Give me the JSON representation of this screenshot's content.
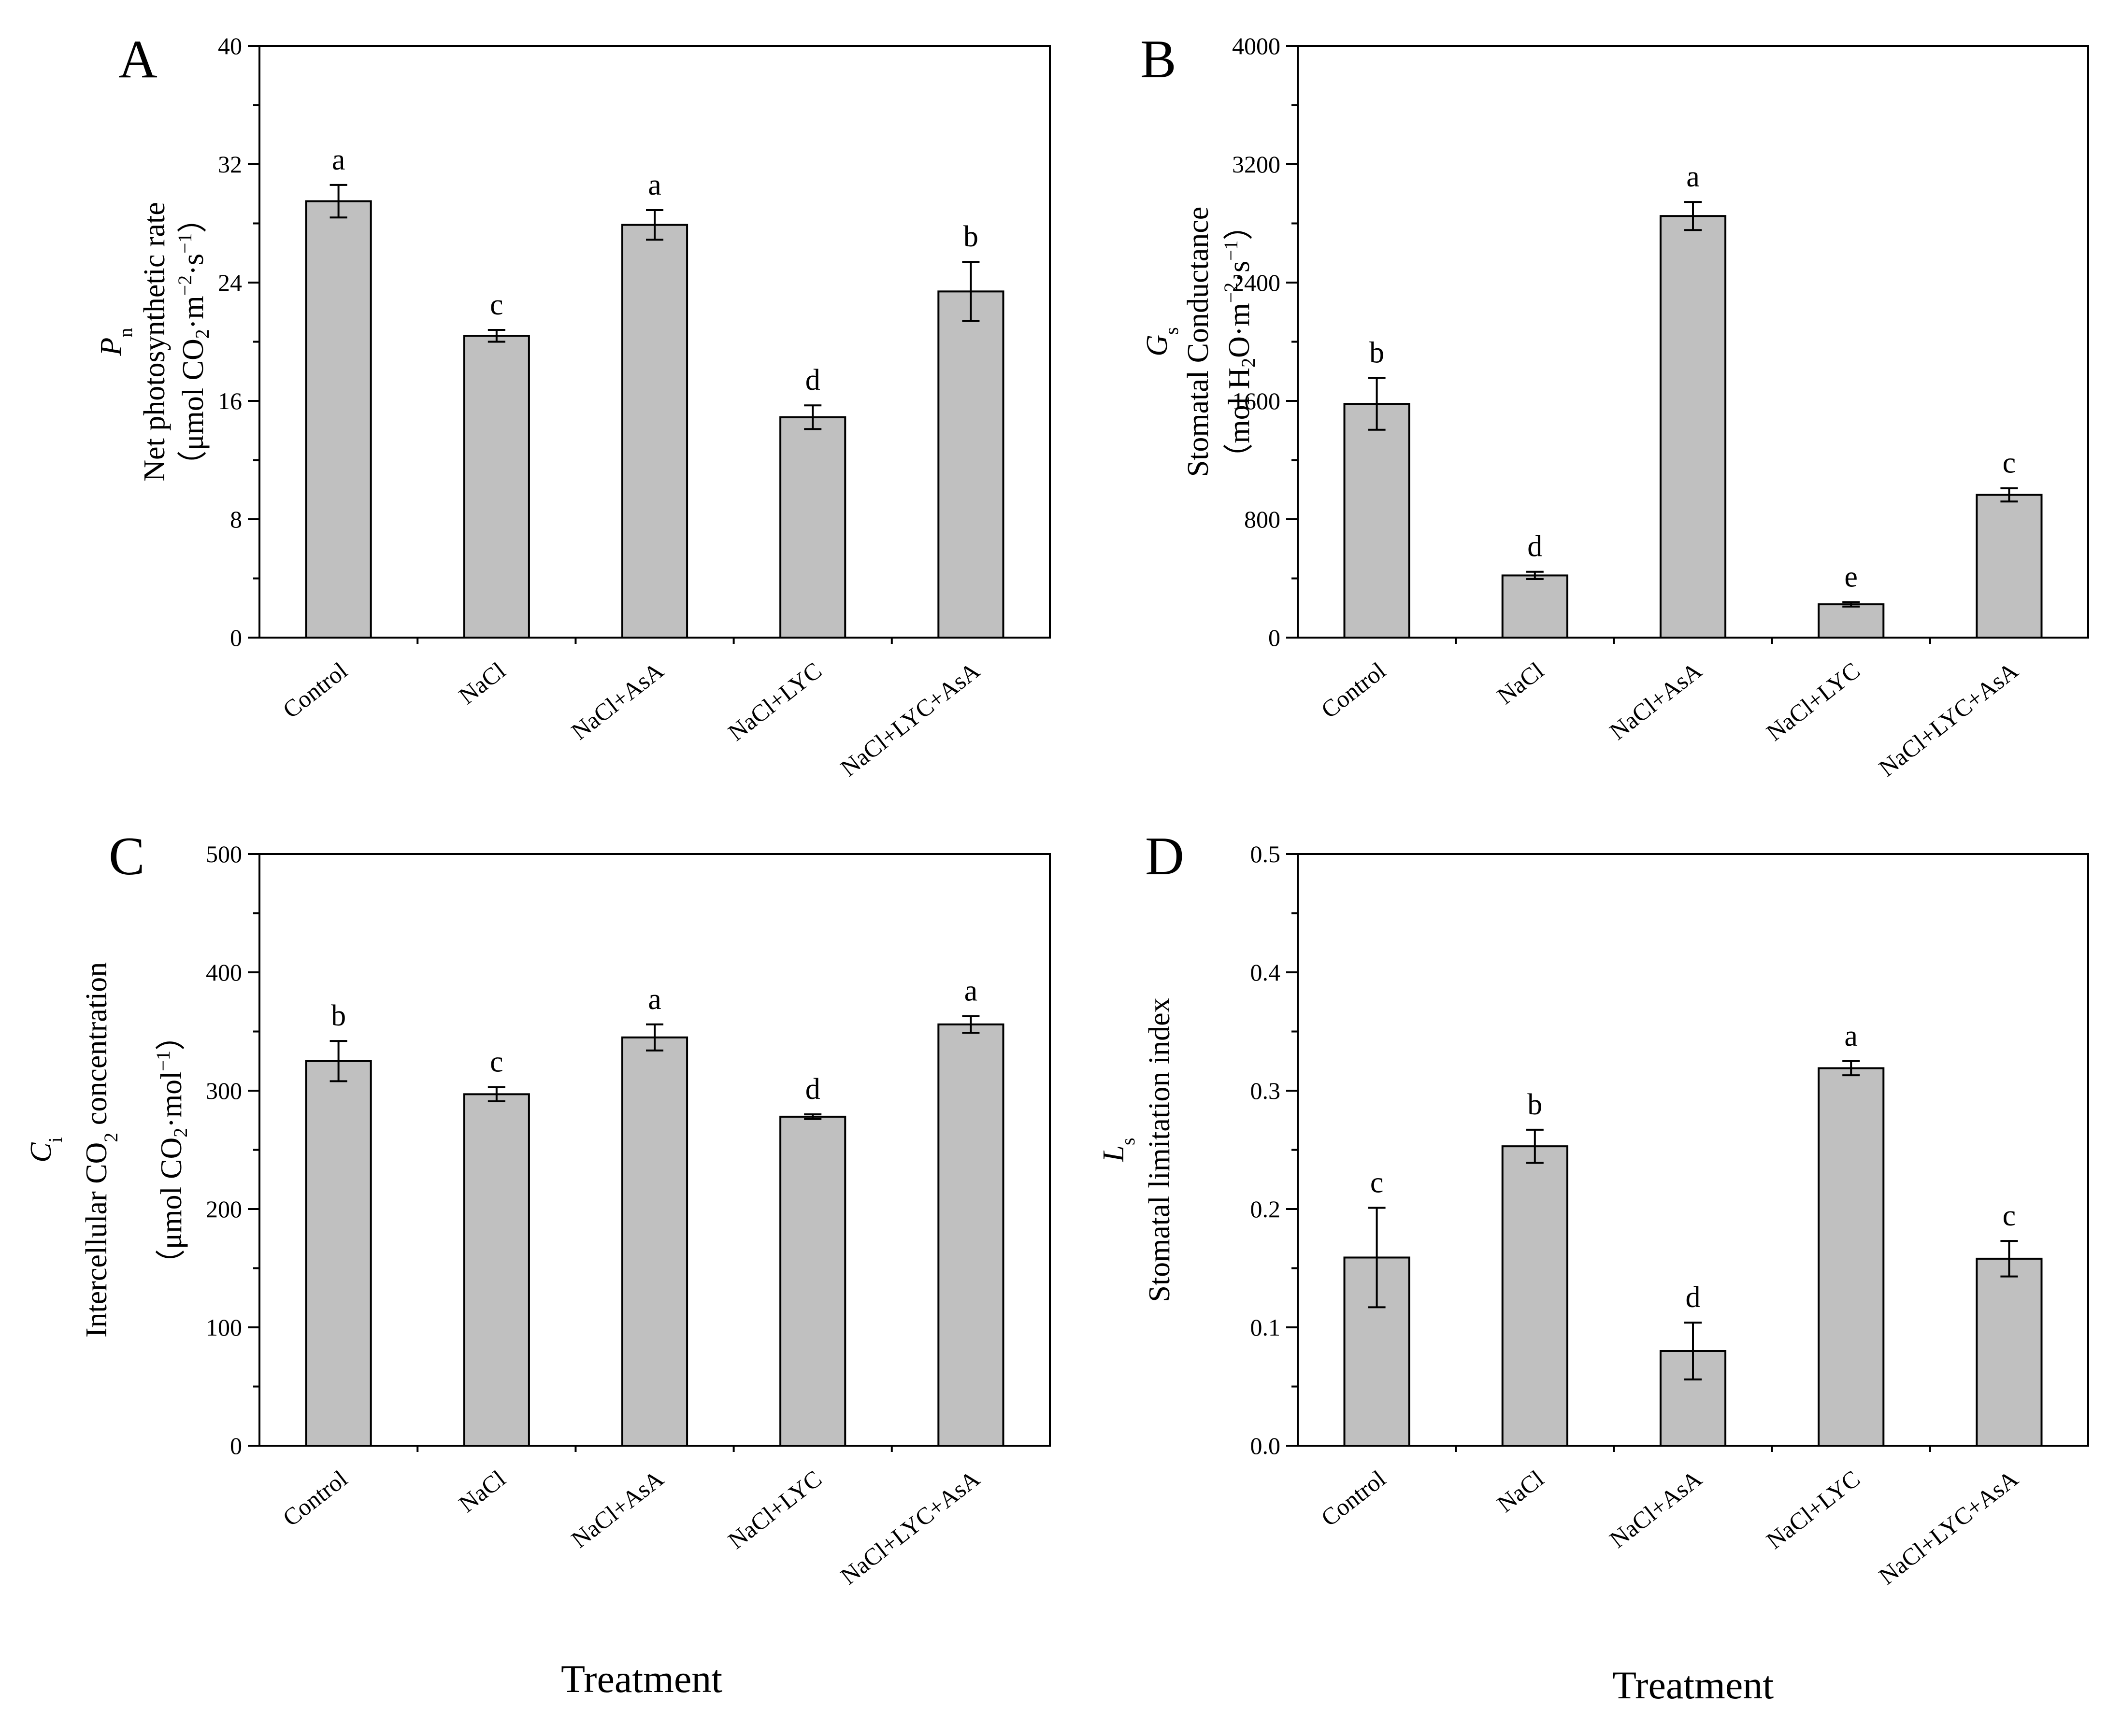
{
  "figure": {
    "x_axis_title": "Treatment"
  },
  "chart_data": [
    {
      "panel": "A",
      "type": "bar",
      "categories": [
        "Control",
        "NaCl",
        "NaCl+AsA",
        "NaCl+LYC",
        "NaCl+LYC+AsA"
      ],
      "values": [
        29.5,
        20.4,
        27.9,
        14.9,
        23.4
      ],
      "errors": [
        1.1,
        0.4,
        1.0,
        0.8,
        2.0
      ],
      "significance": [
        "a",
        "c",
        "a",
        "d",
        "b"
      ],
      "ylim": [
        0,
        40
      ],
      "yticks": [
        "0",
        "8",
        "16",
        "24",
        "32",
        "40"
      ],
      "ylabel": {
        "symbol": "P",
        "symbol_sub": "n",
        "name": "Net photosynthetic rate",
        "unit_open": "（μmol CO",
        "unit_sub": "2",
        "unit_mid": "·m",
        "unit_sup": "−2",
        "unit_mid2": "·s",
        "unit_sup2": "−1",
        "unit_close": "）"
      }
    },
    {
      "panel": "B",
      "type": "bar",
      "categories": [
        "Control",
        "NaCl",
        "NaCl+AsA",
        "NaCl+LYC",
        "NaCl+LYC+AsA"
      ],
      "values": [
        1580,
        420,
        2850,
        225,
        965
      ],
      "errors": [
        175,
        25,
        95,
        15,
        45
      ],
      "significance": [
        "b",
        "d",
        "a",
        "e",
        "c"
      ],
      "ylim": [
        0,
        4000
      ],
      "yticks": [
        "0",
        "800",
        "1600",
        "2400",
        "3200",
        "4000"
      ],
      "ylabel": {
        "symbol": "G",
        "symbol_sub": "s",
        "name": "Stomatal Conductance",
        "unit_open": "（mol H",
        "unit_sub": "2",
        "unit_mid": "O·m",
        "unit_sup": "−2",
        "unit_mid2": "·s",
        "unit_sup2": "−1",
        "unit_close": "）"
      }
    },
    {
      "panel": "C",
      "type": "bar",
      "categories": [
        "Control",
        "NaCl",
        "NaCl+AsA",
        "NaCl+LYC",
        "NaCl+LYC+AsA"
      ],
      "values": [
        325,
        297,
        345,
        278,
        356
      ],
      "errors": [
        17,
        6,
        11,
        2,
        7
      ],
      "significance": [
        "b",
        "c",
        "a",
        "d",
        "a"
      ],
      "ylim": [
        0,
        500
      ],
      "yticks": [
        "0",
        "100",
        "200",
        "300",
        "400",
        "500"
      ],
      "ylabel": {
        "symbol": "C",
        "symbol_sub": "i",
        "name_pre": "Intercellular CO",
        "name_sub": "2",
        "name_post": " concentration",
        "unit_open": "（μmol CO",
        "unit_sub": "2",
        "unit_mid": "·mol",
        "unit_sup": "−1",
        "unit_close": "）"
      }
    },
    {
      "panel": "D",
      "type": "bar",
      "categories": [
        "Control",
        "NaCl",
        "NaCl+AsA",
        "NaCl+LYC",
        "NaCl+LYC+AsA"
      ],
      "values": [
        0.159,
        0.253,
        0.08,
        0.319,
        0.158
      ],
      "errors": [
        0.042,
        0.014,
        0.024,
        0.006,
        0.015
      ],
      "significance": [
        "c",
        "b",
        "d",
        "a",
        "c"
      ],
      "ylim": [
        0,
        0.5
      ],
      "yticks": [
        "0.0",
        "0.1",
        "0.2",
        "0.3",
        "0.4",
        "0.5"
      ],
      "ylabel": {
        "symbol": "L",
        "symbol_sub": "s",
        "name": "Stomatal limitation index"
      }
    }
  ]
}
